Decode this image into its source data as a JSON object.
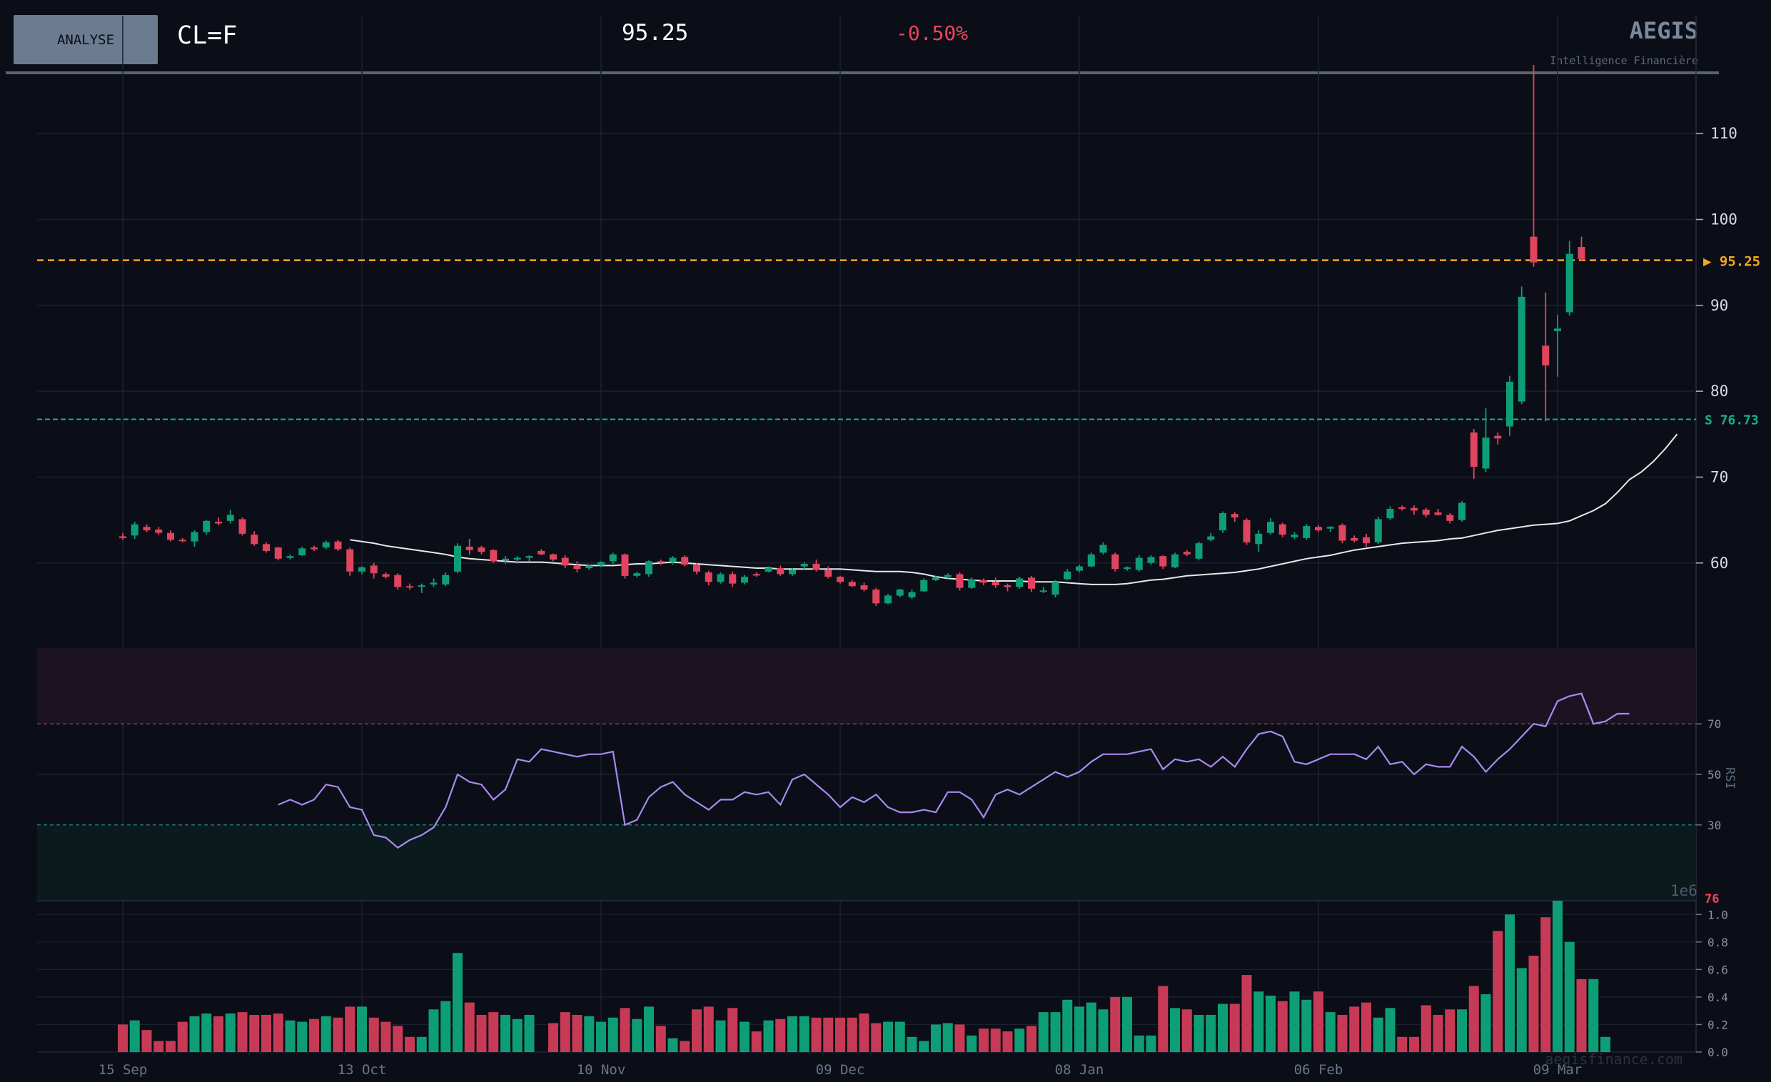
{
  "header": {
    "button_label": "ANALYSE",
    "ticker": "CL=F",
    "price": "95.25",
    "change": "-0.50%",
    "brand": "AEGIS",
    "tagline": "Intelligence Financière",
    "watermark": "aegisfinance.com"
  },
  "colors": {
    "background": "#0b0e17",
    "up": "#0e9e76",
    "down": "#e0445e",
    "price_line": "#f5a623",
    "support_line": "#16b08a",
    "sma": "#e8e8e8",
    "rsi": "#a98af0",
    "grid": "#1b2130"
  },
  "chart_data": [
    {
      "type": "candlestick",
      "x_ticks": [
        "15 Sep",
        "13 Oct",
        "10 Nov",
        "09 Dec",
        "08 Jan",
        "06 Feb",
        "09 Mar"
      ],
      "y_ticks": [
        60,
        70,
        80,
        90,
        100,
        110
      ],
      "ylim": [
        53,
        117
      ],
      "current_price": {
        "value": 95.25,
        "label": "▶ 95.25"
      },
      "support": {
        "value": 76.73,
        "label": "S  76.73"
      },
      "ohlc": [
        [
          63.1,
          63.5,
          62.7,
          62.9
        ],
        [
          63.2,
          64.8,
          62.8,
          64.5
        ],
        [
          64.2,
          64.5,
          63.6,
          63.8
        ],
        [
          63.9,
          64.2,
          63.3,
          63.5
        ],
        [
          63.5,
          63.8,
          62.5,
          62.7
        ],
        [
          62.7,
          62.9,
          62.4,
          62.6
        ],
        [
          62.5,
          63.8,
          61.9,
          63.6
        ],
        [
          63.6,
          65.0,
          63.3,
          64.9
        ],
        [
          64.8,
          65.3,
          64.4,
          64.6
        ],
        [
          64.9,
          66.2,
          64.6,
          65.6
        ],
        [
          65.1,
          65.3,
          63.2,
          63.4
        ],
        [
          63.3,
          63.7,
          62.0,
          62.2
        ],
        [
          62.2,
          62.4,
          61.2,
          61.4
        ],
        [
          61.8,
          61.9,
          60.3,
          60.5
        ],
        [
          60.6,
          61.0,
          60.4,
          60.8
        ],
        [
          60.9,
          61.9,
          60.8,
          61.7
        ],
        [
          61.8,
          62.0,
          61.4,
          61.6
        ],
        [
          61.8,
          62.6,
          61.6,
          62.4
        ],
        [
          62.5,
          62.7,
          61.4,
          61.6
        ],
        [
          61.6,
          61.8,
          58.5,
          59.0
        ],
        [
          59.0,
          59.6,
          58.7,
          59.5
        ],
        [
          59.7,
          60.0,
          58.2,
          58.8
        ],
        [
          58.7,
          58.9,
          58.2,
          58.4
        ],
        [
          58.6,
          58.8,
          56.9,
          57.2
        ],
        [
          57.3,
          57.6,
          56.9,
          57.2
        ],
        [
          57.3,
          57.6,
          56.5,
          57.4
        ],
        [
          57.5,
          58.2,
          57.2,
          57.7
        ],
        [
          57.5,
          58.9,
          57.3,
          58.6
        ],
        [
          59.0,
          62.3,
          58.8,
          62.0
        ],
        [
          61.9,
          62.8,
          61.0,
          61.5
        ],
        [
          61.8,
          62.0,
          61.0,
          61.3
        ],
        [
          61.5,
          61.6,
          60.0,
          60.2
        ],
        [
          60.3,
          60.8,
          59.9,
          60.5
        ],
        [
          60.4,
          60.8,
          59.9,
          60.6
        ],
        [
          60.6,
          60.9,
          60.2,
          60.8
        ],
        [
          61.4,
          61.6,
          60.9,
          61.0
        ],
        [
          61.0,
          61.1,
          60.2,
          60.4
        ],
        [
          60.6,
          60.9,
          59.4,
          59.7
        ],
        [
          59.7,
          60.2,
          58.9,
          59.3
        ],
        [
          59.4,
          59.8,
          59.2,
          59.7
        ],
        [
          59.7,
          60.2,
          59.5,
          60.1
        ],
        [
          60.2,
          61.2,
          59.9,
          61.0
        ],
        [
          61.0,
          61.1,
          58.2,
          58.5
        ],
        [
          58.5,
          59.0,
          58.3,
          58.8
        ],
        [
          58.7,
          60.3,
          58.4,
          60.2
        ],
        [
          60.2,
          60.4,
          59.8,
          60.1
        ],
        [
          60.1,
          60.8,
          59.8,
          60.6
        ],
        [
          60.7,
          60.9,
          59.6,
          59.8
        ],
        [
          59.8,
          60.0,
          58.7,
          59.0
        ],
        [
          58.9,
          59.1,
          57.4,
          57.8
        ],
        [
          57.8,
          58.9,
          57.6,
          58.7
        ],
        [
          58.7,
          59.0,
          57.2,
          57.6
        ],
        [
          57.7,
          58.6,
          57.5,
          58.4
        ],
        [
          58.7,
          58.9,
          58.4,
          58.6
        ],
        [
          59.0,
          59.6,
          58.9,
          59.4
        ],
        [
          59.4,
          59.7,
          58.5,
          58.7
        ],
        [
          58.7,
          59.4,
          58.5,
          59.2
        ],
        [
          59.6,
          60.1,
          59.3,
          59.9
        ],
        [
          59.9,
          60.4,
          59.0,
          59.2
        ],
        [
          59.2,
          59.6,
          58.2,
          58.4
        ],
        [
          58.4,
          58.5,
          57.6,
          57.8
        ],
        [
          57.8,
          58.0,
          57.2,
          57.3
        ],
        [
          57.4,
          57.7,
          56.7,
          56.9
        ],
        [
          56.9,
          57.1,
          55.0,
          55.3
        ],
        [
          55.3,
          56.4,
          55.2,
          56.2
        ],
        [
          56.2,
          57.0,
          56.0,
          56.9
        ],
        [
          56.0,
          56.9,
          55.8,
          56.6
        ],
        [
          56.7,
          58.2,
          56.6,
          58.0
        ],
        [
          58.0,
          58.5,
          57.9,
          58.3
        ],
        [
          58.4,
          58.8,
          58.2,
          58.6
        ],
        [
          58.7,
          58.9,
          56.8,
          57.1
        ],
        [
          57.1,
          58.3,
          57.0,
          58.1
        ],
        [
          58.0,
          58.2,
          57.4,
          57.7
        ],
        [
          57.8,
          58.3,
          57.1,
          57.4
        ],
        [
          57.4,
          57.6,
          56.7,
          57.2
        ],
        [
          57.2,
          58.4,
          57.0,
          58.2
        ],
        [
          58.3,
          58.5,
          56.6,
          57.0
        ],
        [
          56.8,
          57.2,
          56.5,
          56.8
        ],
        [
          56.3,
          58.0,
          56.0,
          57.8
        ],
        [
          58.1,
          59.3,
          58.0,
          59.0
        ],
        [
          59.1,
          59.8,
          58.9,
          59.6
        ],
        [
          59.6,
          61.2,
          59.5,
          61.0
        ],
        [
          61.2,
          62.4,
          61.0,
          62.1
        ],
        [
          61.0,
          61.2,
          59.0,
          59.3
        ],
        [
          59.3,
          59.6,
          59.1,
          59.5
        ],
        [
          59.2,
          60.9,
          59.0,
          60.6
        ],
        [
          60.0,
          60.9,
          59.8,
          60.7
        ],
        [
          60.8,
          60.9,
          59.3,
          59.6
        ],
        [
          59.5,
          61.2,
          59.4,
          61.0
        ],
        [
          61.3,
          61.5,
          60.8,
          61.0
        ],
        [
          60.5,
          62.5,
          60.3,
          62.3
        ],
        [
          62.7,
          63.5,
          62.5,
          63.1
        ],
        [
          63.8,
          66.0,
          63.5,
          65.8
        ],
        [
          65.7,
          65.9,
          64.8,
          65.3
        ],
        [
          65.0,
          65.2,
          62.1,
          62.4
        ],
        [
          62.2,
          63.8,
          61.3,
          63.4
        ],
        [
          63.5,
          65.2,
          63.3,
          64.8
        ],
        [
          64.5,
          64.7,
          63.0,
          63.3
        ],
        [
          63.0,
          63.6,
          62.8,
          63.3
        ],
        [
          62.9,
          64.5,
          62.7,
          64.3
        ],
        [
          64.2,
          64.4,
          63.6,
          63.8
        ],
        [
          64.0,
          64.3,
          63.6,
          64.2
        ],
        [
          64.4,
          64.6,
          62.3,
          62.6
        ],
        [
          62.9,
          63.2,
          62.4,
          62.6
        ],
        [
          63.0,
          63.4,
          61.9,
          62.3
        ],
        [
          62.4,
          65.4,
          62.2,
          65.1
        ],
        [
          65.2,
          66.6,
          65.0,
          66.3
        ],
        [
          66.5,
          66.7,
          66.1,
          66.3
        ],
        [
          66.4,
          66.7,
          65.6,
          66.1
        ],
        [
          66.2,
          66.4,
          65.3,
          65.6
        ],
        [
          65.9,
          66.3,
          65.5,
          65.6
        ],
        [
          65.6,
          65.8,
          64.6,
          64.9
        ],
        [
          65.0,
          67.2,
          64.8,
          67.0
        ],
        [
          75.2,
          75.6,
          69.8,
          71.2
        ],
        [
          71.0,
          78.0,
          70.6,
          74.6
        ],
        [
          74.8,
          75.2,
          73.8,
          74.5
        ],
        [
          75.9,
          81.8,
          74.8,
          81.1
        ],
        [
          78.8,
          92.2,
          78.5,
          91.0
        ],
        [
          98.0,
          118.0,
          94.5,
          95.0
        ],
        [
          85.3,
          91.5,
          76.5,
          83.0
        ],
        [
          87.0,
          88.9,
          81.7,
          87.3
        ],
        [
          89.2,
          97.5,
          88.8,
          96.0
        ],
        [
          96.8,
          98.0,
          95.2,
          95.4
        ]
      ],
      "sma_start": 19,
      "sma": [
        62.7,
        62.5,
        62.3,
        62.0,
        61.8,
        61.6,
        61.4,
        61.2,
        61.0,
        60.7,
        60.5,
        60.4,
        60.3,
        60.2,
        60.1,
        60.1,
        60.1,
        60.0,
        59.9,
        59.8,
        59.7,
        59.7,
        59.7,
        59.8,
        59.9,
        59.9,
        60.0,
        60.1,
        60.0,
        59.9,
        59.8,
        59.7,
        59.6,
        59.5,
        59.4,
        59.4,
        59.3,
        59.3,
        59.3,
        59.3,
        59.3,
        59.3,
        59.2,
        59.1,
        59.0,
        59.0,
        59.0,
        58.9,
        58.7,
        58.4,
        58.2,
        58.1,
        58.0,
        57.9,
        57.9,
        57.9,
        57.9,
        57.8,
        57.8,
        57.8,
        57.7,
        57.6,
        57.5,
        57.5,
        57.5,
        57.6,
        57.8,
        58.0,
        58.1,
        58.3,
        58.5,
        58.6,
        58.7,
        58.8,
        58.9,
        59.1,
        59.3,
        59.6,
        59.9,
        60.2,
        60.5,
        60.7,
        60.9,
        61.2,
        61.5,
        61.7,
        61.9,
        62.1,
        62.3,
        62.4,
        62.5,
        62.6,
        62.8,
        62.9,
        63.2,
        63.5,
        63.8,
        64.0,
        64.2,
        64.4,
        64.5,
        64.6,
        64.9,
        65.5,
        66.1,
        66.9,
        68.2,
        69.7,
        70.6,
        71.8,
        73.3,
        75.0
      ]
    },
    {
      "type": "line",
      "ylabel": "RSI",
      "y_ticks": [
        30,
        50,
        70
      ],
      "ylim": [
        0,
        100
      ],
      "overbought": 70,
      "oversold": 30,
      "start_index": 13,
      "values": [
        38,
        40,
        38,
        40,
        46,
        45,
        37,
        36,
        26,
        25,
        21,
        24,
        26,
        29,
        37,
        50,
        47,
        46,
        40,
        44,
        56,
        55,
        60,
        59,
        58,
        57,
        58,
        58,
        59,
        30,
        32,
        41,
        45,
        47,
        42,
        39,
        36,
        40,
        40,
        43,
        42,
        43,
        38,
        48,
        50,
        46,
        42,
        37,
        41,
        39,
        42,
        37,
        35,
        35,
        36,
        35,
        43,
        43,
        40,
        33,
        42,
        44,
        42,
        45,
        48,
        51,
        49,
        51,
        55,
        58,
        58,
        58,
        59,
        60,
        52,
        56,
        55,
        56,
        53,
        57,
        53,
        60,
        66,
        67,
        65,
        55,
        54,
        56,
        58,
        58,
        58,
        56,
        61,
        54,
        55,
        50,
        54,
        53,
        53,
        61,
        57,
        51,
        56,
        60,
        65,
        70,
        69,
        79,
        81,
        82,
        70,
        71,
        74,
        74
      ]
    },
    {
      "type": "bar",
      "ylabel": "1e6",
      "y_ticks": [
        "0.0",
        "0.2",
        "0.4",
        "0.6",
        "0.8",
        "1.0"
      ],
      "ylim": [
        0,
        1.1
      ],
      "peak_label": "76",
      "values": [
        0.2,
        0.23,
        0.16,
        0.08,
        0.08,
        0.22,
        0.26,
        0.28,
        0.26,
        0.28,
        0.29,
        0.27,
        0.27,
        0.28,
        0.23,
        0.22,
        0.24,
        0.26,
        0.25,
        0.33,
        0.33,
        0.25,
        0.22,
        0.19,
        0.11,
        0.11,
        0.31,
        0.37,
        0.72,
        0.36,
        0.27,
        0.29,
        0.27,
        0.24,
        0.27,
        0.0,
        0.21,
        0.29,
        0.27,
        0.26,
        0.22,
        0.25,
        0.32,
        0.24,
        0.33,
        0.19,
        0.1,
        0.08,
        0.31,
        0.33,
        0.23,
        0.32,
        0.22,
        0.15,
        0.23,
        0.24,
        0.26,
        0.26,
        0.25,
        0.25,
        0.25,
        0.25,
        0.28,
        0.21,
        0.22,
        0.22,
        0.11,
        0.08,
        0.2,
        0.21,
        0.2,
        0.12,
        0.17,
        0.17,
        0.15,
        0.17,
        0.19,
        0.29,
        0.29,
        0.38,
        0.33,
        0.36,
        0.31,
        0.4,
        0.4,
        0.12,
        0.12,
        0.48,
        0.32,
        0.31,
        0.27,
        0.27,
        0.35,
        0.35,
        0.56,
        0.44,
        0.41,
        0.37,
        0.44,
        0.38,
        0.44,
        0.29,
        0.27,
        0.33,
        0.36,
        0.25,
        0.32,
        0.11,
        0.11,
        0.34,
        0.27,
        0.31,
        0.31,
        0.48,
        0.42,
        0.88,
        1.0,
        0.61,
        0.7,
        0.98,
        1.1,
        0.8,
        0.53,
        0.53,
        0.11
      ]
    }
  ]
}
